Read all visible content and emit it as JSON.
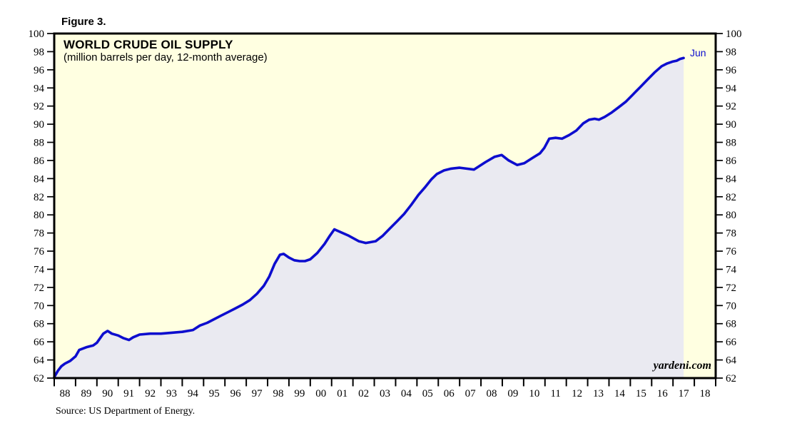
{
  "figure": {
    "label": "Figure 3."
  },
  "source_note": "Source: US Department of Energy.",
  "chart_data": {
    "type": "area",
    "title": "WORLD CRUDE OIL SUPPLY",
    "subtitle": "(million barrels per day, 12-month average)",
    "series_name": "World crude oil supply (12-month average)",
    "end_point_label": "Jun",
    "watermark": "yardeni.com",
    "xlim": [
      1988,
      2019
    ],
    "ylim": [
      62,
      100
    ],
    "ytick_step": 2,
    "yticks": [
      62,
      64,
      66,
      68,
      70,
      72,
      74,
      76,
      78,
      80,
      82,
      84,
      86,
      88,
      90,
      92,
      94,
      96,
      98,
      100
    ],
    "xtick_labels": [
      "88",
      "89",
      "90",
      "91",
      "92",
      "93",
      "94",
      "95",
      "96",
      "97",
      "98",
      "99",
      "00",
      "01",
      "02",
      "03",
      "04",
      "05",
      "06",
      "07",
      "08",
      "09",
      "10",
      "11",
      "12",
      "13",
      "14",
      "15",
      "16",
      "17",
      "18"
    ],
    "axis_sides": "left-and-right",
    "grid": false,
    "legend": "none",
    "colors": {
      "line": "#0d0dce",
      "area_fill": "#eaeaf1",
      "plot_background": "#ffffe1",
      "frame": "#000000",
      "tick_text": "#000000",
      "end_label": "#0d0dce"
    },
    "points": [
      [
        1988.0,
        62.1
      ],
      [
        1988.17,
        62.8
      ],
      [
        1988.33,
        63.3
      ],
      [
        1988.5,
        63.6
      ],
      [
        1988.75,
        63.9
      ],
      [
        1989.0,
        64.4
      ],
      [
        1989.17,
        65.1
      ],
      [
        1989.5,
        65.4
      ],
      [
        1989.83,
        65.6
      ],
      [
        1990.0,
        65.9
      ],
      [
        1990.3,
        66.9
      ],
      [
        1990.5,
        67.2
      ],
      [
        1990.7,
        66.9
      ],
      [
        1991.0,
        66.7
      ],
      [
        1991.25,
        66.4
      ],
      [
        1991.5,
        66.2
      ],
      [
        1991.7,
        66.5
      ],
      [
        1991.9,
        66.7
      ],
      [
        1992.0,
        66.8
      ],
      [
        1992.5,
        66.9
      ],
      [
        1993.0,
        66.9
      ],
      [
        1993.5,
        67.0
      ],
      [
        1994.0,
        67.1
      ],
      [
        1994.5,
        67.3
      ],
      [
        1994.83,
        67.8
      ],
      [
        1995.17,
        68.1
      ],
      [
        1995.5,
        68.5
      ],
      [
        1995.83,
        68.9
      ],
      [
        1996.17,
        69.3
      ],
      [
        1996.5,
        69.7
      ],
      [
        1996.83,
        70.1
      ],
      [
        1997.17,
        70.6
      ],
      [
        1997.5,
        71.3
      ],
      [
        1997.83,
        72.2
      ],
      [
        1998.08,
        73.2
      ],
      [
        1998.33,
        74.6
      ],
      [
        1998.58,
        75.6
      ],
      [
        1998.75,
        75.7
      ],
      [
        1999.0,
        75.3
      ],
      [
        1999.25,
        75.0
      ],
      [
        1999.5,
        74.9
      ],
      [
        1999.75,
        74.9
      ],
      [
        2000.0,
        75.1
      ],
      [
        2000.33,
        75.8
      ],
      [
        2000.67,
        76.8
      ],
      [
        2000.92,
        77.7
      ],
      [
        2001.13,
        78.4
      ],
      [
        2001.42,
        78.1
      ],
      [
        2001.8,
        77.7
      ],
      [
        2002.27,
        77.1
      ],
      [
        2002.6,
        76.9
      ],
      [
        2003.07,
        77.1
      ],
      [
        2003.4,
        77.7
      ],
      [
        2003.73,
        78.5
      ],
      [
        2004.07,
        79.3
      ],
      [
        2004.4,
        80.1
      ],
      [
        2004.73,
        81.1
      ],
      [
        2005.07,
        82.2
      ],
      [
        2005.4,
        83.1
      ],
      [
        2005.67,
        83.9
      ],
      [
        2005.93,
        84.5
      ],
      [
        2006.27,
        84.9
      ],
      [
        2006.6,
        85.1
      ],
      [
        2007.0,
        85.2
      ],
      [
        2007.33,
        85.1
      ],
      [
        2007.67,
        85.0
      ],
      [
        2008.2,
        85.8
      ],
      [
        2008.63,
        86.4
      ],
      [
        2008.97,
        86.6
      ],
      [
        2009.3,
        86.0
      ],
      [
        2009.7,
        85.5
      ],
      [
        2010.03,
        85.7
      ],
      [
        2010.43,
        86.3
      ],
      [
        2010.77,
        86.8
      ],
      [
        2010.97,
        87.4
      ],
      [
        2011.2,
        88.4
      ],
      [
        2011.5,
        88.5
      ],
      [
        2011.8,
        88.4
      ],
      [
        2012.13,
        88.8
      ],
      [
        2012.47,
        89.3
      ],
      [
        2012.8,
        90.1
      ],
      [
        2013.07,
        90.5
      ],
      [
        2013.33,
        90.6
      ],
      [
        2013.53,
        90.5
      ],
      [
        2013.8,
        90.8
      ],
      [
        2014.13,
        91.3
      ],
      [
        2014.47,
        91.9
      ],
      [
        2014.8,
        92.5
      ],
      [
        2015.13,
        93.3
      ],
      [
        2015.47,
        94.1
      ],
      [
        2015.8,
        94.9
      ],
      [
        2016.13,
        95.7
      ],
      [
        2016.47,
        96.4
      ],
      [
        2016.73,
        96.7
      ],
      [
        2016.97,
        96.9
      ],
      [
        2017.17,
        97.0
      ],
      [
        2017.33,
        97.2
      ],
      [
        2017.5,
        97.3
      ]
    ]
  }
}
